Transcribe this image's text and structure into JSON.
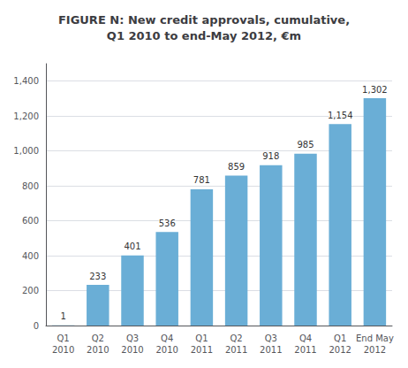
{
  "chart_data": {
    "type": "bar",
    "title": "FIGURE N: New credit approvals, cumulative,\nQ1 2010 to end-May 2012, €m",
    "categories": [
      "Q1\n2010",
      "Q2\n2010",
      "Q3\n2010",
      "Q4\n2010",
      "Q1\n2011",
      "Q2\n2011",
      "Q3\n2011",
      "Q4\n2011",
      "Q1\n2012",
      "End May\n2012"
    ],
    "values": [
      1,
      233,
      401,
      536,
      781,
      859,
      918,
      985,
      1154,
      1302
    ],
    "value_labels": [
      "1",
      "233",
      "401",
      "536",
      "781",
      "859",
      "918",
      "985",
      "1,154",
      "1,302"
    ],
    "data_labels": true,
    "color": "#6aaed6",
    "ylim": [
      0,
      1500
    ],
    "yticks": [
      0,
      200,
      400,
      600,
      800,
      {
        "value": 1000,
        "label": "1,000"
      },
      {
        "value": 1200,
        "label": "1,200"
      },
      {
        "value": 1400,
        "label": "1,400"
      }
    ],
    "grid": true
  }
}
